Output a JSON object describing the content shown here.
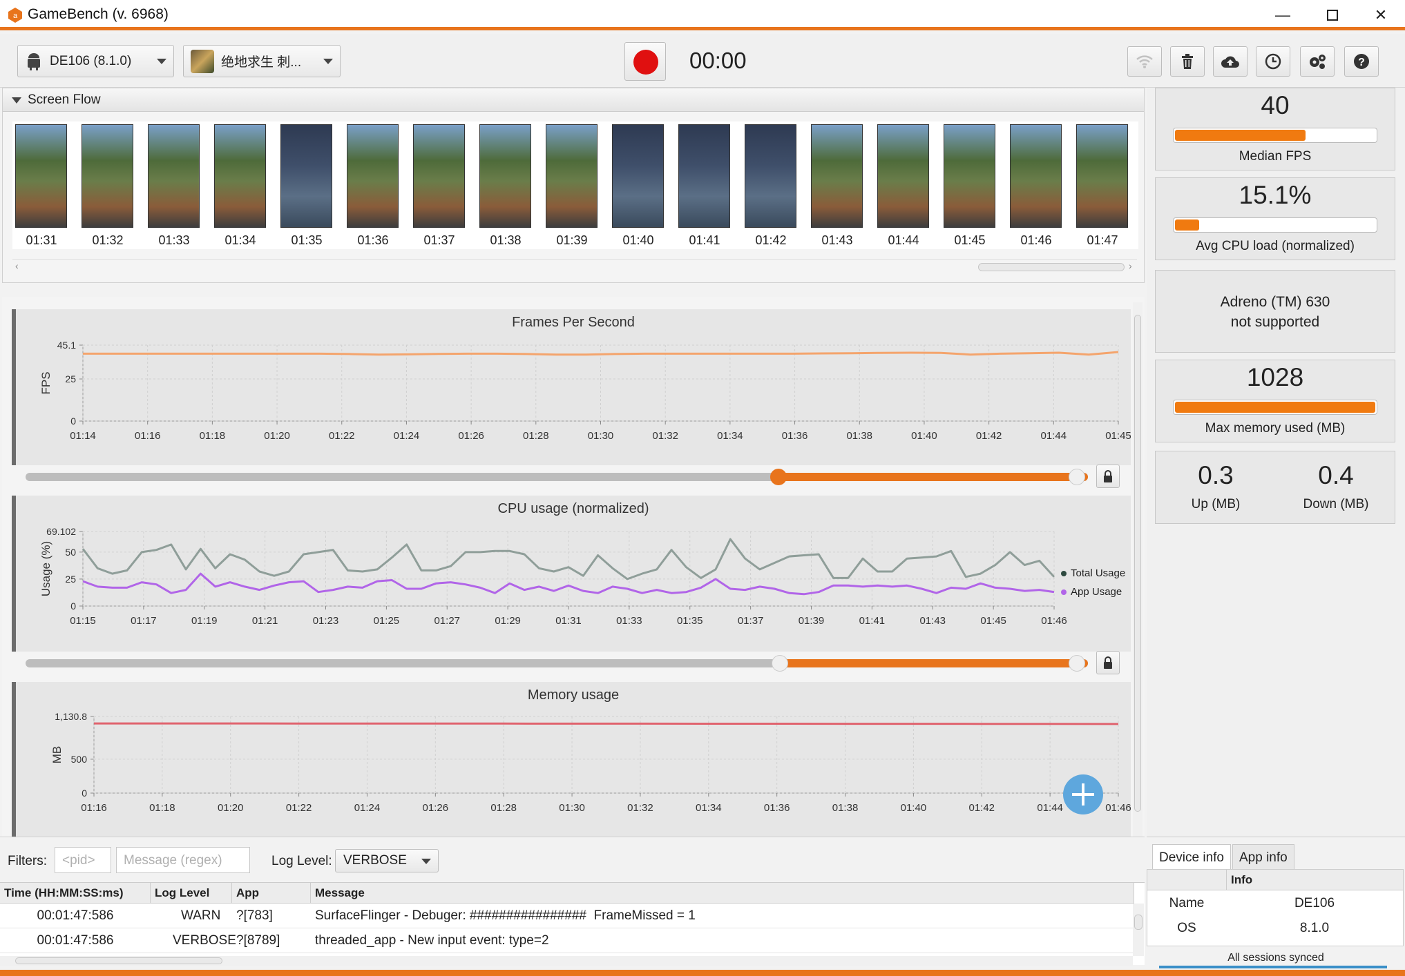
{
  "window": {
    "title": "GameBench (v. 6968)"
  },
  "toolbar": {
    "device_label": "DE106 (8.1.0)",
    "app_label": "绝地求生 刺...",
    "timer": "00:00"
  },
  "screen_flow": {
    "header": "Screen Flow",
    "thumbnails": [
      "01:31",
      "01:32",
      "01:33",
      "01:34",
      "01:35",
      "01:36",
      "01:37",
      "01:38",
      "01:39",
      "01:40",
      "01:41",
      "01:42",
      "01:43",
      "01:44",
      "01:45",
      "01:46",
      "01:47"
    ]
  },
  "charts": {
    "fps": {
      "title": "Frames Per Second"
    },
    "cpu": {
      "title": "CPU usage (normalized)"
    },
    "mem": {
      "title": "Memory usage"
    }
  },
  "chart_data": [
    {
      "type": "line",
      "title": "Frames Per Second",
      "ylabel": "FPS",
      "yticks": [
        "0",
        "25",
        "45.1"
      ],
      "ylim": [
        0,
        45.1
      ],
      "xticks": [
        "01:14",
        "01:16",
        "01:18",
        "01:20",
        "01:22",
        "01:24",
        "01:26",
        "01:28",
        "01:30",
        "01:32",
        "01:34",
        "01:36",
        "01:38",
        "01:40",
        "01:42",
        "01:44",
        "01:45"
      ],
      "series": [
        {
          "color": "#f4a46c",
          "x_range": [
            "01:14",
            "01:45"
          ],
          "values": [
            40,
            40,
            40,
            40,
            40,
            40,
            40,
            40,
            40,
            39.8,
            39.5,
            39.6,
            39.9,
            40,
            40,
            39.8,
            39.5,
            39.5,
            39.8,
            40,
            40,
            40,
            40,
            40,
            40,
            40.2,
            40.3,
            40.5,
            40.6,
            40.5,
            39.5,
            40,
            40.3,
            40.6,
            39.5,
            41
          ]
        }
      ]
    },
    {
      "type": "line",
      "title": "CPU usage (normalized)",
      "ylabel": "Usage (%)",
      "yticks": [
        "0",
        "25",
        "50",
        "69.102"
      ],
      "ylim": [
        0,
        69.102
      ],
      "xticks": [
        "01:15",
        "01:17",
        "01:19",
        "01:21",
        "01:23",
        "01:25",
        "01:27",
        "01:29",
        "01:31",
        "01:33",
        "01:35",
        "01:37",
        "01:39",
        "01:41",
        "01:43",
        "01:45",
        "01:46"
      ],
      "series": [
        {
          "name": "Total Usage",
          "color": "#8f9e99",
          "values": [
            53,
            35,
            30,
            33,
            50,
            52,
            57,
            34,
            53,
            35,
            48,
            43,
            32,
            28,
            32,
            48,
            50,
            52,
            33,
            32,
            34,
            45,
            57,
            33,
            33,
            37,
            50,
            50,
            51,
            51,
            48,
            35,
            32,
            36,
            28,
            47,
            35,
            25,
            30,
            34,
            52,
            36,
            26,
            34,
            62,
            44,
            34,
            40,
            46,
            47,
            48,
            26,
            26,
            44,
            32,
            32,
            44,
            45,
            46,
            51,
            27,
            30,
            38,
            50,
            38,
            42,
            27
          ]
        },
        {
          "name": "App Usage",
          "color": "#b165e8",
          "values": [
            23,
            18,
            17,
            17,
            22,
            20,
            12,
            15,
            30,
            18,
            22,
            18,
            15,
            19,
            22,
            23,
            13,
            15,
            18,
            17,
            23,
            24,
            16,
            16,
            21,
            22,
            20,
            17,
            12,
            21,
            15,
            18,
            14,
            19,
            14,
            12,
            18,
            16,
            12,
            15,
            12,
            13,
            17,
            25,
            16,
            15,
            18,
            16,
            12,
            11,
            13,
            19,
            19,
            18,
            19,
            18,
            19,
            16,
            12,
            17,
            16,
            21,
            17,
            16,
            14,
            15,
            13
          ]
        }
      ]
    },
    {
      "type": "line",
      "title": "Memory usage",
      "ylabel": "MB",
      "yticks": [
        "0",
        "500",
        "1,130.8"
      ],
      "ylim": [
        0,
        1130.8
      ],
      "xticks": [
        "01:16",
        "01:18",
        "01:20",
        "01:22",
        "01:24",
        "01:26",
        "01:28",
        "01:30",
        "01:32",
        "01:34",
        "01:36",
        "01:38",
        "01:40",
        "01:42",
        "01:44",
        "01:46"
      ],
      "series": [
        {
          "color": "#e0636e",
          "values": [
            1028,
            1028,
            1028,
            1027,
            1027,
            1026,
            1026,
            1025,
            1025,
            1024,
            1024,
            1023,
            1023,
            1022,
            1021,
            1020
          ]
        }
      ]
    }
  ],
  "legend": {
    "total": "Total Usage",
    "app": "App Usage"
  },
  "stats": {
    "median_fps": {
      "value": "40",
      "label": "Median FPS",
      "fill": 0.65
    },
    "cpu": {
      "value": "15.1%",
      "label": "Avg CPU load (normalized)",
      "fill": 0.12
    },
    "gpu": {
      "line1": "Adreno (TM) 630",
      "line2": "not supported"
    },
    "memory": {
      "value": "1028",
      "label": "Max memory used (MB)",
      "fill": 1.0
    },
    "network": {
      "up": "0.3",
      "up_label": "Up (MB)",
      "down": "0.4",
      "down_label": "Down (MB)"
    }
  },
  "filters": {
    "label": "Filters:",
    "pid_placeholder": "<pid>",
    "msg_placeholder": "Message (regex)",
    "log_level_label": "Log Level:",
    "log_level": "VERBOSE"
  },
  "log": {
    "headers": [
      "Time (HH:MM:SS:ms)",
      "Log Level",
      "App",
      "Message"
    ],
    "rows": [
      [
        "00:01:47:586",
        "WARN",
        "?[783]",
        "SurfaceFlinger - Debuger: ################  FrameMissed = 1"
      ],
      [
        "00:01:47:586",
        "VERBOSE",
        "?[8789]",
        "threaded_app - New input event: type=2"
      ]
    ]
  },
  "info_panel": {
    "tabs": [
      "Device info",
      "App info"
    ],
    "header": "Info",
    "rows": [
      [
        "Name",
        "DE106"
      ],
      [
        "OS",
        "8.1.0"
      ]
    ],
    "status": "All sessions synced"
  },
  "colors": {
    "accent": "#e8741c",
    "record": "#e01010",
    "fps_line": "#f4a46c",
    "mem_line": "#e0636e"
  }
}
